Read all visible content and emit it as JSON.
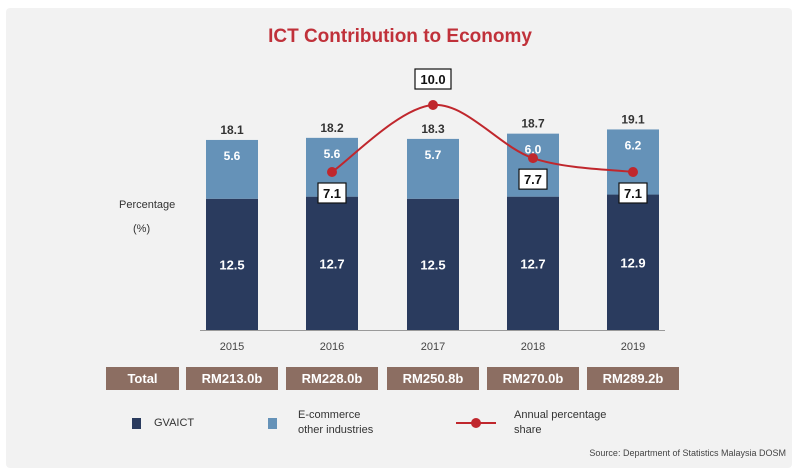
{
  "colors": {
    "gvaict": "#2a3b5e",
    "ecommerce": "#6592b8",
    "line": "#c0272d",
    "total_bar": "#8c6e62",
    "title": "#c0313a"
  },
  "chart_data": {
    "type": "bar",
    "stacked": true,
    "title": "ICT Contribution to Economy",
    "ylabel": "Percentage (%)",
    "ylabel_main": "Percentage",
    "ylabel_unit": "(%)",
    "categories": [
      "2015",
      "2016",
      "2017",
      "2018",
      "2019"
    ],
    "series": [
      {
        "name": "GVAICT",
        "values": [
          12.5,
          12.7,
          12.5,
          12.7,
          12.9
        ]
      },
      {
        "name": "E-commerce other industries",
        "values": [
          5.6,
          5.6,
          5.7,
          6.0,
          6.2
        ]
      }
    ],
    "bar_totals": [
      18.1,
      18.2,
      18.3,
      18.7,
      19.1
    ],
    "annual_share": {
      "name": "Annual percentage share",
      "categories": [
        "2016",
        "2017",
        "2018",
        "2019"
      ],
      "values": [
        7.1,
        10.0,
        7.7,
        7.1
      ],
      "labels": [
        "7.1",
        "10.0",
        "7.7",
        "7.1"
      ]
    },
    "legend_position": "bottom"
  },
  "totals": {
    "label": "Total",
    "values": [
      "RM213.0b",
      "RM228.0b",
      "RM250.8b",
      "RM270.0b",
      "RM289.2b"
    ]
  },
  "legend": {
    "gvaict": "GVAICT",
    "ecommerce_line1": "E-commerce",
    "ecommerce_line2": "other industries",
    "share_line1": "Annual percentage",
    "share_line2": "share"
  },
  "source": "Source: Department of Statistics Malaysia DOSM"
}
